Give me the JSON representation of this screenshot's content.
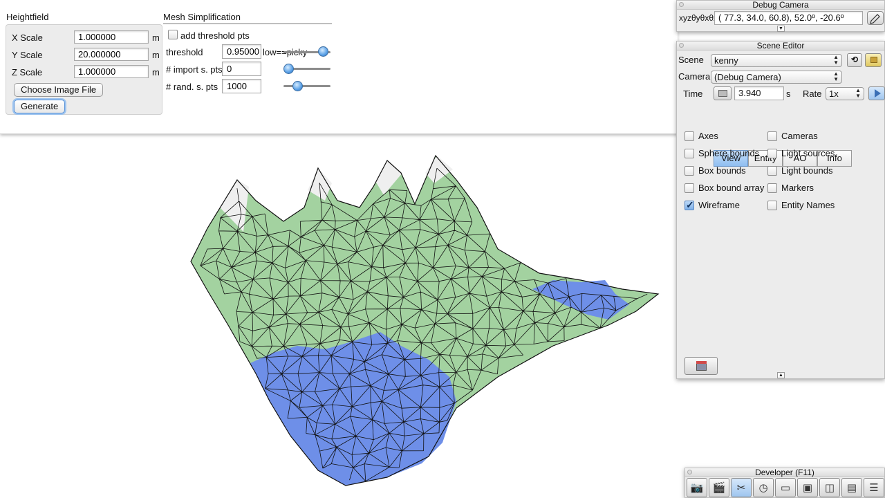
{
  "heightfield": {
    "title": "Heightfield",
    "x_scale_label": "X Scale",
    "x_scale_value": "1.000000",
    "y_scale_label": "Y Scale",
    "y_scale_value": "20.000000",
    "z_scale_label": "Z Scale",
    "z_scale_value": "1.000000",
    "unit": "m",
    "choose_image_label": "Choose Image File",
    "generate_label": "Generate"
  },
  "mesh_simplification": {
    "title": "Mesh Simplification",
    "add_threshold_label": "add threshold pts",
    "threshold_label": "threshold",
    "threshold_value": "0.95000",
    "threshold_hint": "low==picky",
    "import_label": "# import s. pts",
    "import_value": "0",
    "rand_label": "# rand. s. pts",
    "rand_value": "1000",
    "sliders": {
      "threshold": 0.95,
      "import": 0.0,
      "rand": 0.25
    }
  },
  "debug_camera": {
    "title": "Debug Camera",
    "coord_label": "xyzθyθxθz",
    "coord_value": "( 77.3,  34.0,  60.8),  52.0º, -20.6º"
  },
  "scene_editor": {
    "title": "Scene Editor",
    "scene_label": "Scene",
    "scene_value": "kenny",
    "camera_label": "Camera",
    "camera_value": "(Debug Camera)",
    "time_label": "Time",
    "time_value": "3.940",
    "time_unit": "s",
    "rate_label": "Rate",
    "rate_value": "1x",
    "tabs": [
      "View",
      "Entity",
      "AO",
      "Info"
    ],
    "active_tab": "View",
    "options_left": [
      {
        "label": "Axes",
        "checked": false
      },
      {
        "label": "Sphere bounds",
        "checked": false
      },
      {
        "label": "Box bounds",
        "checked": false
      },
      {
        "label": "Box bound array",
        "checked": false
      },
      {
        "label": "Wireframe",
        "checked": true
      }
    ],
    "options_right": [
      {
        "label": "Cameras",
        "checked": false
      },
      {
        "label": "Light sources",
        "checked": false
      },
      {
        "label": "Light bounds",
        "checked": false
      },
      {
        "label": "Markers",
        "checked": false
      },
      {
        "label": "Entity Names",
        "checked": false
      }
    ]
  },
  "developer": {
    "title": "Developer (F11)",
    "tools": [
      "camera-icon",
      "clapperboard-icon",
      "tools-icon",
      "clock-icon",
      "new-document-icon",
      "terminal-icon",
      "windows-icon",
      "monitor-icon",
      "notes-icon"
    ]
  },
  "colors": {
    "terrain_green": "#a3d2a0",
    "terrain_blue": "#6e8fe8",
    "accent": "#8fbef0"
  }
}
